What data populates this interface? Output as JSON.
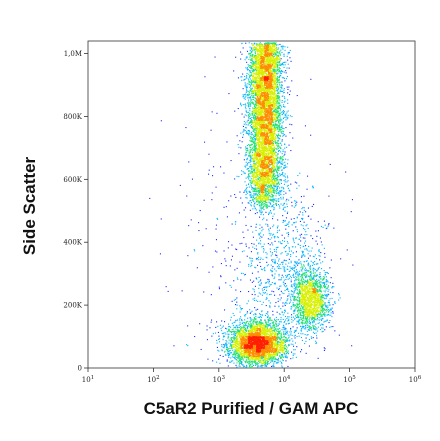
{
  "chart_data": {
    "type": "scatter",
    "plot_style": "density-colored flow cytometry dot plot",
    "xlabel": "C5aR2 Purified / GAM APC",
    "ylabel": "Side Scatter",
    "x_scale": "log",
    "xlim": [
      10,
      1000000
    ],
    "ylim": [
      0,
      1040000
    ],
    "x_ticks": [
      {
        "value": 10,
        "base": "10",
        "exp": "1"
      },
      {
        "value": 100,
        "base": "10",
        "exp": "2"
      },
      {
        "value": 1000,
        "base": "10",
        "exp": "3"
      },
      {
        "value": 10000,
        "base": "10",
        "exp": "4"
      },
      {
        "value": 100000,
        "base": "10",
        "exp": "5"
      },
      {
        "value": 1000000,
        "base": "10",
        "exp": "6"
      }
    ],
    "y_ticks": [
      {
        "value": 0,
        "label": "0"
      },
      {
        "value": 200000,
        "label": "200K"
      },
      {
        "value": 400000,
        "label": "400K"
      },
      {
        "value": 600000,
        "label": "600K"
      },
      {
        "value": 800000,
        "label": "800K"
      },
      {
        "value": 1000000,
        "label": "1,0M"
      }
    ],
    "grid": false,
    "populations": [
      {
        "center_x": 5000,
        "center_y": 750000,
        "spread_log_x": 0.13,
        "spread_y": 150000,
        "y_range": [
          520000,
          1040000
        ],
        "events": 6500
      },
      {
        "center_x": 3800,
        "center_y": 80000,
        "spread_log_x": 0.22,
        "spread_y": 35000,
        "events": 3500
      },
      {
        "center_x": 25000,
        "center_y": 220000,
        "spread_log_x": 0.15,
        "spread_y": 50000,
        "events": 1500
      },
      {
        "center_x": 10000,
        "center_y": 350000,
        "spread_log_x": 0.35,
        "spread_y": 120000,
        "events": 700
      },
      {
        "center_x": 3000,
        "center_y": 300000,
        "spread_log_x": 0.6,
        "spread_y": 250000,
        "events": 350
      }
    ],
    "colors": [
      "#1a2cff",
      "#00b4ff",
      "#20e070",
      "#d8f000",
      "#ff8c00",
      "#ff1e00"
    ]
  }
}
